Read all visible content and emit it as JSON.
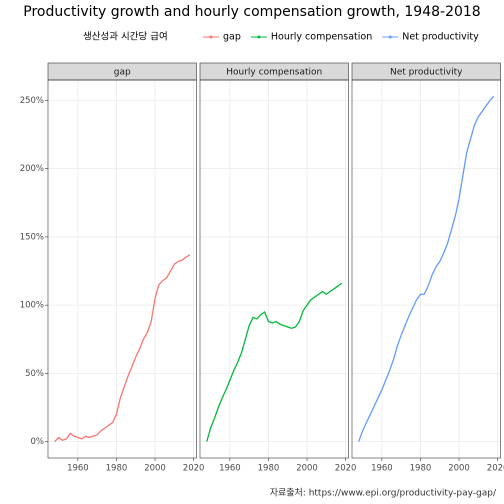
{
  "chart_data": {
    "type": "line",
    "title": "Productivity growth and hourly compensation growth, 1948-2018",
    "legend_title": "생산성과 시간당 급여",
    "caption": "자료출처: https://www.epi.org/productivity-pay-gap/",
    "facets": true,
    "grid": true,
    "legend": "top",
    "x": [
      1948,
      1950,
      1952,
      1954,
      1956,
      1958,
      1960,
      1962,
      1964,
      1966,
      1968,
      1970,
      1972,
      1974,
      1976,
      1978,
      1980,
      1982,
      1984,
      1986,
      1988,
      1990,
      1992,
      1994,
      1996,
      1998,
      2000,
      2002,
      2004,
      2006,
      2008,
      2010,
      2012,
      2014,
      2016,
      2018
    ],
    "series": [
      {
        "name": "gap",
        "color": "#F8766D",
        "values": [
          0,
          3,
          1,
          2,
          6,
          4,
          3,
          2,
          4,
          3,
          4,
          5,
          8,
          10,
          12,
          14,
          20,
          32,
          40,
          48,
          55,
          62,
          68,
          75,
          80,
          88,
          105,
          115,
          118,
          120,
          125,
          130,
          132,
          133,
          135,
          137
        ]
      },
      {
        "name": "Hourly compensation",
        "color": "#00BA38",
        "values": [
          0,
          10,
          17,
          25,
          32,
          38,
          45,
          52,
          58,
          65,
          75,
          85,
          91,
          90,
          93,
          95,
          88,
          87,
          88,
          86,
          85,
          84,
          83,
          84,
          88,
          96,
          100,
          104,
          106,
          108,
          110,
          108,
          110,
          112,
          114,
          116
        ]
      },
      {
        "name": "Net productivity",
        "color": "#619CFF",
        "values": [
          0,
          8,
          14,
          20,
          26,
          32,
          38,
          45,
          52,
          60,
          70,
          78,
          85,
          92,
          98,
          104,
          108,
          108,
          114,
          122,
          128,
          132,
          138,
          145,
          155,
          165,
          178,
          195,
          212,
          222,
          232,
          238,
          242,
          246,
          250,
          253
        ]
      }
    ],
    "xlim": [
      1944.5,
      2021.5
    ],
    "xticks": [
      1960,
      1980,
      2000,
      2020
    ],
    "ylim": [
      -12,
      265
    ],
    "yticks": [
      {
        "value": 0,
        "label": "0%"
      },
      {
        "value": 50,
        "label": "50%"
      },
      {
        "value": 100,
        "label": "100%"
      },
      {
        "value": 150,
        "label": "150%"
      },
      {
        "value": 200,
        "label": "200%"
      },
      {
        "value": 250,
        "label": "250%"
      }
    ]
  }
}
